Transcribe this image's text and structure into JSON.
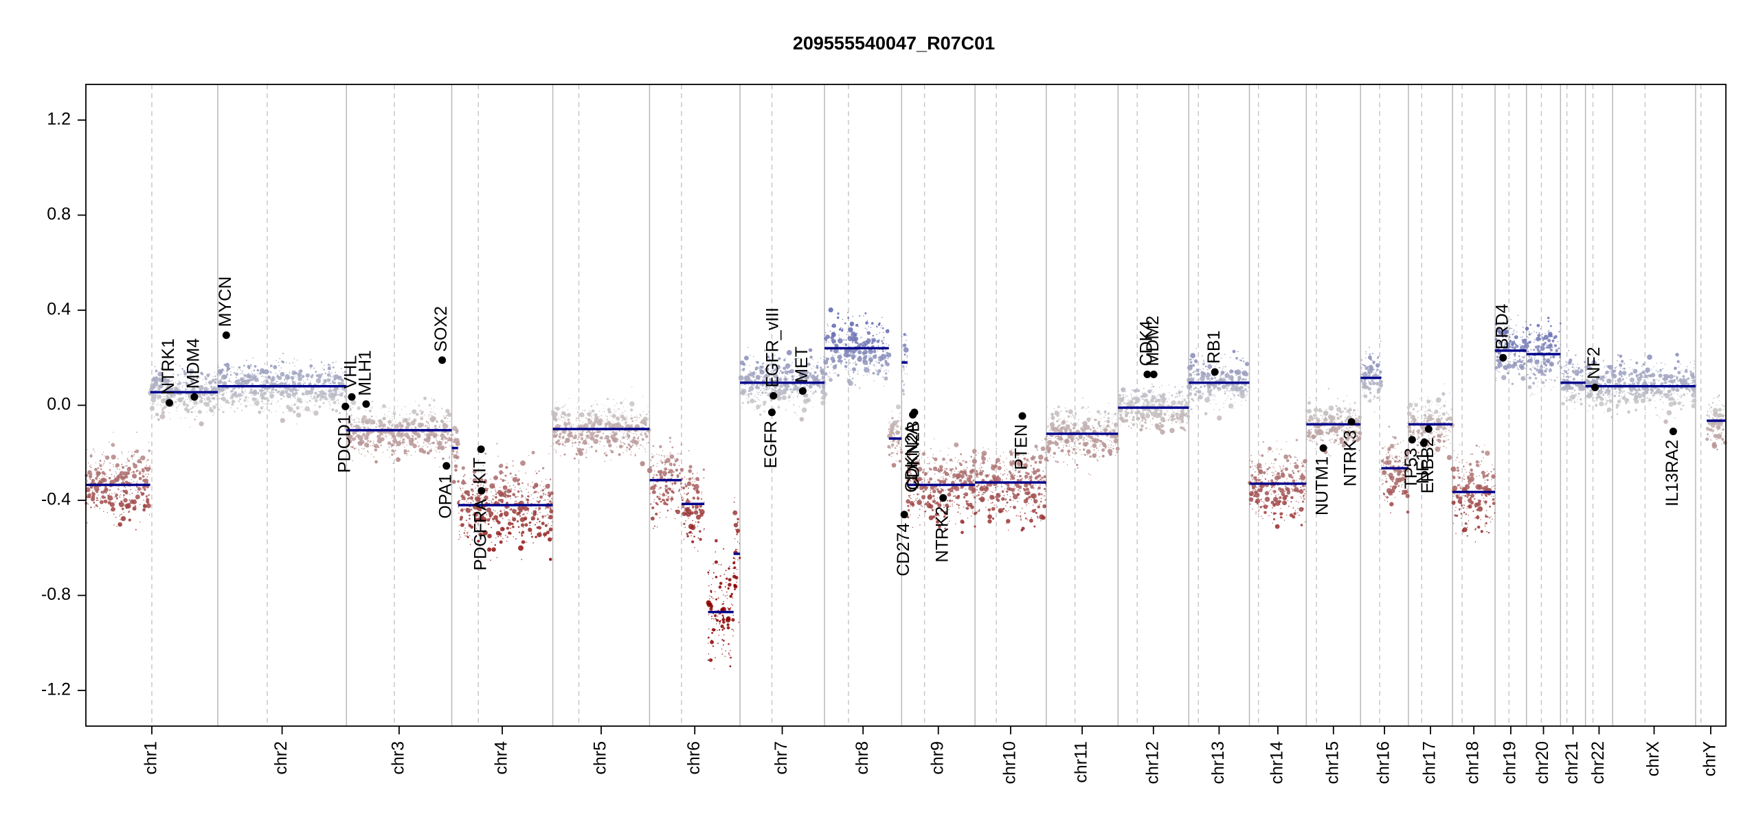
{
  "chart_data": {
    "type": "scatter",
    "title": "209555540047_R07C01",
    "xlabel": "",
    "ylabel": "",
    "ylim": [
      -1.35,
      1.35
    ],
    "yticks": [
      -1.2,
      -0.8,
      -0.4,
      0.0,
      0.4,
      0.8,
      1.2
    ],
    "ytick_labels": [
      "-1.2",
      "-0.8",
      "-0.4",
      "0.0",
      "0.4",
      "0.8",
      "1.2"
    ],
    "grid": false,
    "colors": {
      "gain": "#5b63b0",
      "neutral": "#c8c8c8",
      "loss": "#8b0000",
      "segment": "#00008b",
      "gene_point": "#000000",
      "chrom_boundary": "#b8b8b8",
      "centromere": "#c8c8c8",
      "frame": "#000000"
    },
    "chromosomes": [
      {
        "name": "chr1",
        "start": 0,
        "end": 248,
        "centromere": 124
      },
      {
        "name": "chr2",
        "start": 248,
        "end": 490,
        "centromere": 341
      },
      {
        "name": "chr3",
        "start": 490,
        "end": 688,
        "centromere": 580
      },
      {
        "name": "chr4",
        "start": 688,
        "end": 878,
        "centromere": 738
      },
      {
        "name": "chr5",
        "start": 878,
        "end": 1060,
        "centromere": 927
      },
      {
        "name": "chr6",
        "start": 1060,
        "end": 1230,
        "centromere": 1120
      },
      {
        "name": "chr7",
        "start": 1230,
        "end": 1389,
        "centromere": 1290
      },
      {
        "name": "chr8",
        "start": 1389,
        "end": 1534,
        "centromere": 1434
      },
      {
        "name": "chr9",
        "start": 1534,
        "end": 1672,
        "centromere": 1577
      },
      {
        "name": "chr10",
        "start": 1672,
        "end": 1806,
        "centromere": 1712
      },
      {
        "name": "chr11",
        "start": 1806,
        "end": 1941,
        "centromere": 1860
      },
      {
        "name": "chr12",
        "start": 1941,
        "end": 2074,
        "centromere": 1977
      },
      {
        "name": "chr13",
        "start": 2074,
        "end": 2188,
        "centromere": 2092
      },
      {
        "name": "chr14",
        "start": 2188,
        "end": 2295,
        "centromere": 2205
      },
      {
        "name": "chr15",
        "start": 2295,
        "end": 2397,
        "centromere": 2314
      },
      {
        "name": "chr16",
        "start": 2397,
        "end": 2487,
        "centromere": 2433
      },
      {
        "name": "chr17",
        "start": 2487,
        "end": 2570,
        "centromere": 2512
      },
      {
        "name": "chr18",
        "start": 2570,
        "end": 2650,
        "centromere": 2588
      },
      {
        "name": "chr19",
        "start": 2650,
        "end": 2709,
        "centromere": 2676
      },
      {
        "name": "chr20",
        "start": 2709,
        "end": 2773,
        "centromere": 2737
      },
      {
        "name": "chr21",
        "start": 2773,
        "end": 2820,
        "centromere": 2785
      },
      {
        "name": "chr22",
        "start": 2820,
        "end": 2871,
        "centromere": 2834
      },
      {
        "name": "chrX",
        "start": 2871,
        "end": 3027,
        "centromere": 2932
      },
      {
        "name": "chrY",
        "start": 3027,
        "end": 3084,
        "centromere": 3037
      }
    ],
    "segments": [
      {
        "start": 0,
        "end": 121,
        "value": -0.335
      },
      {
        "start": 121,
        "end": 248,
        "value": 0.055
      },
      {
        "start": 248,
        "end": 490,
        "value": 0.08
      },
      {
        "start": 490,
        "end": 688,
        "value": -0.105
      },
      {
        "start": 688,
        "end": 700,
        "value": -0.18
      },
      {
        "start": 700,
        "end": 878,
        "value": -0.42
      },
      {
        "start": 878,
        "end": 1060,
        "value": -0.1
      },
      {
        "start": 1060,
        "end": 1120,
        "value": -0.315
      },
      {
        "start": 1120,
        "end": 1163,
        "value": -0.415
      },
      {
        "start": 1170,
        "end": 1218,
        "value": -0.87
      },
      {
        "start": 1218,
        "end": 1230,
        "value": -0.625
      },
      {
        "start": 1230,
        "end": 1389,
        "value": 0.095
      },
      {
        "start": 1389,
        "end": 1510,
        "value": 0.24
      },
      {
        "start": 1510,
        "end": 1534,
        "value": -0.14
      },
      {
        "start": 1534,
        "end": 1545,
        "value": 0.18
      },
      {
        "start": 1545,
        "end": 1672,
        "value": -0.335
      },
      {
        "start": 1672,
        "end": 1806,
        "value": -0.325
      },
      {
        "start": 1806,
        "end": 1941,
        "value": -0.12
      },
      {
        "start": 1941,
        "end": 2074,
        "value": -0.01
      },
      {
        "start": 2074,
        "end": 2188,
        "value": 0.095
      },
      {
        "start": 2188,
        "end": 2295,
        "value": -0.33
      },
      {
        "start": 2295,
        "end": 2397,
        "value": -0.08
      },
      {
        "start": 2397,
        "end": 2436,
        "value": 0.115
      },
      {
        "start": 2436,
        "end": 2487,
        "value": -0.265
      },
      {
        "start": 2487,
        "end": 2570,
        "value": -0.08
      },
      {
        "start": 2570,
        "end": 2650,
        "value": -0.365
      },
      {
        "start": 2650,
        "end": 2709,
        "value": 0.23
      },
      {
        "start": 2709,
        "end": 2773,
        "value": 0.215
      },
      {
        "start": 2773,
        "end": 2820,
        "value": 0.095
      },
      {
        "start": 2820,
        "end": 3027,
        "value": 0.08
      },
      {
        "start": 3048,
        "end": 3084,
        "value": -0.065
      }
    ],
    "genes": [
      {
        "name": "NTRK1",
        "pos": 157,
        "value": 0.01
      },
      {
        "name": "MDM4",
        "pos": 204,
        "value": 0.035
      },
      {
        "name": "MYCN",
        "pos": 264,
        "value": 0.295
      },
      {
        "name": "PDCD1",
        "pos": 488,
        "value": -0.005
      },
      {
        "name": "VHL",
        "pos": 500,
        "value": 0.035
      },
      {
        "name": "MLH1",
        "pos": 527,
        "value": 0.005
      },
      {
        "name": "SOX2",
        "pos": 670,
        "value": 0.19
      },
      {
        "name": "OPA1",
        "pos": 678,
        "value": -0.255
      },
      {
        "name": "KIT",
        "pos": 743,
        "value": -0.185
      },
      {
        "name": "PDGFRA",
        "pos": 744,
        "value": -0.36
      },
      {
        "name": "EGFR",
        "pos": 1290,
        "value": -0.03
      },
      {
        "name": "EGFR_vIII",
        "pos": 1293,
        "value": 0.04
      },
      {
        "name": "MET",
        "pos": 1348,
        "value": 0.06
      },
      {
        "name": "CD274",
        "pos": 1539,
        "value": -0.46
      },
      {
        "name": "CDKN2A",
        "pos": 1555,
        "value": -0.04
      },
      {
        "name": "CDKN2B",
        "pos": 1558,
        "value": -0.03
      },
      {
        "name": "NTRK2",
        "pos": 1612,
        "value": -0.39
      },
      {
        "name": "PTEN",
        "pos": 1761,
        "value": -0.045
      },
      {
        "name": "CDK4",
        "pos": 1996,
        "value": 0.13
      },
      {
        "name": "MDM2",
        "pos": 2008,
        "value": 0.13
      },
      {
        "name": "RB1",
        "pos": 2123,
        "value": 0.14
      },
      {
        "name": "NUTM1",
        "pos": 2327,
        "value": -0.18
      },
      {
        "name": "NTRK3",
        "pos": 2380,
        "value": -0.07
      },
      {
        "name": "TP53",
        "pos": 2494,
        "value": -0.145
      },
      {
        "name": "ERBB2",
        "pos": 2525,
        "value": -0.1
      },
      {
        "name": "NF1",
        "pos": 2516,
        "value": -0.16
      },
      {
        "name": "BRD4",
        "pos": 2665,
        "value": 0.2
      },
      {
        "name": "NF2",
        "pos": 2838,
        "value": 0.075
      },
      {
        "name": "IL13RA2",
        "pos": 2985,
        "value": -0.11
      }
    ]
  }
}
